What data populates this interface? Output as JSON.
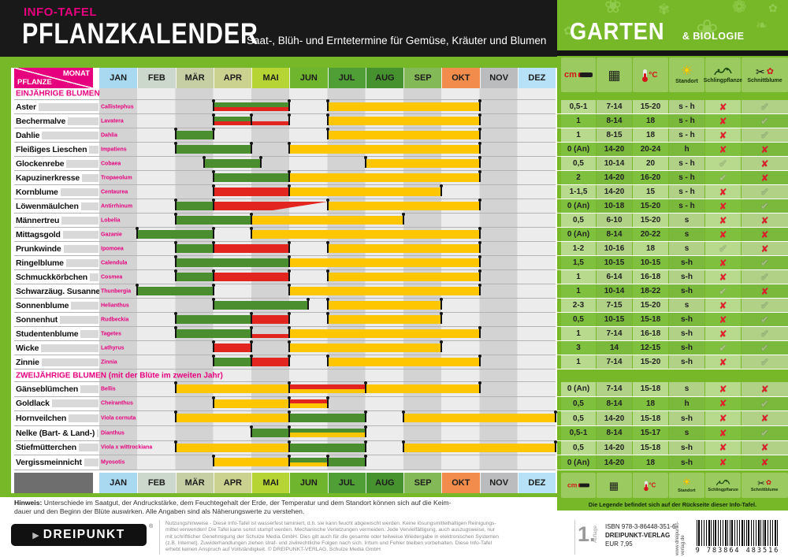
{
  "header": {
    "kicker": "INFO-TAFEL",
    "title": "PFLANZKALENDER",
    "subtitle": "Saat-, Blüh- und Erntetermine für Gemüse, Kräuter und Blumen"
  },
  "brand": {
    "title": "GARTEN",
    "subtitle": "& BIOLOGIE"
  },
  "corner": {
    "top": "MONAT",
    "bottom": "PFLANZE"
  },
  "months": [
    "JAN",
    "FEB",
    "MÄR",
    "APR",
    "MAI",
    "JUN",
    "JUL",
    "AUG",
    "SEP",
    "OKT",
    "NOV",
    "DEZ"
  ],
  "month_colors": [
    "#a9d9f1",
    "#ccd8cc",
    "#c6cfa4",
    "#cbd18e",
    "#b6d433",
    "#6fb52d",
    "#4f9e36",
    "#45922e",
    "#84b957",
    "#f18c4c",
    "#bbbcbd",
    "#b7e1f6"
  ],
  "legend_columns": [
    {
      "id": "depth",
      "label": "",
      "unit": "cm"
    },
    {
      "id": "calendar",
      "label": "",
      "glyph": "▦"
    },
    {
      "id": "thermo",
      "label": "",
      "unit": "°C"
    },
    {
      "id": "sun",
      "label": "Standort",
      "glyph": "☀"
    },
    {
      "id": "vine",
      "label": "Schlingpflanze"
    },
    {
      "id": "shears",
      "label": "Schnittblume",
      "glyph": "✂",
      "flower": "✿"
    }
  ],
  "marks": {
    "yes": "✔",
    "no": "✘"
  },
  "legend_note": "Die Legende befindet sich auf der Rückseite dieser Info-Tafel.",
  "sections": [
    {
      "title": "EINJÄHRIGE BLUMEN",
      "plants": [
        {
          "name": "Aster",
          "latin": "Callistephus",
          "bars": [
            {
              "c": "green",
              "s": 3,
              "e": 5,
              "v": "top"
            },
            {
              "c": "red",
              "s": 3,
              "e": 5,
              "v": "bottom"
            },
            {
              "c": "yellow",
              "s": 6,
              "e": 10,
              "v": "full"
            }
          ],
          "depth": "0,5-1",
          "days": "7-14",
          "temp": "15-20",
          "site": "s - h",
          "climber": "no",
          "cutflower": "yes"
        },
        {
          "name": "Bechermalve",
          "latin": "Lavatera",
          "bars": [
            {
              "c": "green",
              "s": 3,
              "e": 4,
              "v": "top"
            },
            {
              "c": "red",
              "s": 3,
              "e": 5,
              "v": "bottom"
            },
            {
              "c": "yellow",
              "s": 6,
              "e": 10,
              "v": "full"
            }
          ],
          "depth": "1",
          "days": "8-14",
          "temp": "18",
          "site": "s - h",
          "climber": "no",
          "cutflower": "yes"
        },
        {
          "name": "Dahlie",
          "latin": "Dahlia",
          "bars": [
            {
              "c": "green",
              "s": 2,
              "e": 3,
              "v": "full"
            },
            {
              "c": "yellow",
              "s": 6,
              "e": 10,
              "v": "full"
            }
          ],
          "depth": "1",
          "days": "8-15",
          "temp": "18",
          "site": "s - h",
          "climber": "no",
          "cutflower": "yes"
        },
        {
          "name": "Fleißiges Lieschen",
          "latin": "Impatiens",
          "bars": [
            {
              "c": "green",
              "s": 2,
              "e": 4,
              "v": "full"
            },
            {
              "c": "yellow",
              "s": 5,
              "e": 10,
              "v": "full"
            }
          ],
          "depth": "0 (An)",
          "days": "14-20",
          "temp": "20-24",
          "site": "h",
          "climber": "no",
          "cutflower": "no"
        },
        {
          "name": "Glockenrebe",
          "latin": "Cobaea",
          "bars": [
            {
              "c": "green",
              "s": 2.75,
              "e": 4.25,
              "v": "full"
            },
            {
              "c": "yellow",
              "s": 7,
              "e": 10,
              "v": "full"
            }
          ],
          "depth": "0,5",
          "days": "10-14",
          "temp": "20",
          "site": "s - h",
          "climber": "yes",
          "cutflower": "no"
        },
        {
          "name": "Kapuzinerkresse",
          "latin": "Tropaeolum",
          "bars": [
            {
              "c": "green",
              "s": 3,
              "e": 5,
              "v": "full"
            },
            {
              "c": "yellow",
              "s": 5,
              "e": 10,
              "v": "full"
            }
          ],
          "depth": "2",
          "days": "14-20",
          "temp": "16-20",
          "site": "s - h",
          "climber": "yes",
          "cutflower": "no"
        },
        {
          "name": "Kornblume",
          "latin": "Centaurea",
          "bars": [
            {
              "c": "red",
              "s": 3,
              "e": 5,
              "v": "full"
            },
            {
              "c": "yellow",
              "s": 5,
              "e": 9,
              "v": "full"
            }
          ],
          "depth": "1-1,5",
          "days": "14-20",
          "temp": "15",
          "site": "s - h",
          "climber": "no",
          "cutflower": "yes"
        },
        {
          "name": "Löwenmäulchen",
          "latin": "Antirrhinum",
          "bars": [
            {
              "c": "green",
              "s": 2,
              "e": 3,
              "v": "full"
            },
            {
              "c": "red",
              "s": 3,
              "e": 6,
              "v": "taper"
            },
            {
              "c": "yellow",
              "s": 6,
              "e": 10,
              "v": "full"
            }
          ],
          "depth": "0 (An)",
          "days": "10-18",
          "temp": "15-20",
          "site": "s - h",
          "climber": "no",
          "cutflower": "yes"
        },
        {
          "name": "Männertreu",
          "latin": "Lobelia",
          "bars": [
            {
              "c": "green",
              "s": 2,
              "e": 4,
              "v": "full"
            },
            {
              "c": "yellow",
              "s": 4,
              "e": 8,
              "v": "full"
            }
          ],
          "depth": "0,5",
          "days": "6-10",
          "temp": "15-20",
          "site": "s",
          "climber": "no",
          "cutflower": "no"
        },
        {
          "name": "Mittagsgold",
          "latin": "Gazanie",
          "bars": [
            {
              "c": "green",
              "s": 1,
              "e": 3,
              "v": "full"
            },
            {
              "c": "yellow",
              "s": 4,
              "e": 10,
              "v": "full"
            }
          ],
          "depth": "0 (An)",
          "days": "8-14",
          "temp": "20-22",
          "site": "s",
          "climber": "no",
          "cutflower": "no"
        },
        {
          "name": "Prunkwinde",
          "latin": "Ipomoea",
          "bars": [
            {
              "c": "green",
              "s": 2,
              "e": 3,
              "v": "full"
            },
            {
              "c": "red",
              "s": 3,
              "e": 5,
              "v": "full"
            },
            {
              "c": "yellow",
              "s": 6,
              "e": 10,
              "v": "full"
            }
          ],
          "depth": "1-2",
          "days": "10-16",
          "temp": "18",
          "site": "s",
          "climber": "yes",
          "cutflower": "no"
        },
        {
          "name": "Ringelblume",
          "latin": "Calendula",
          "bars": [
            {
              "c": "green",
              "s": 2,
              "e": 5,
              "v": "full"
            },
            {
              "c": "yellow",
              "s": 5,
              "e": 10,
              "v": "full"
            }
          ],
          "depth": "1,5",
          "days": "10-15",
          "temp": "10-15",
          "site": "s-h",
          "climber": "no",
          "cutflower": "yes"
        },
        {
          "name": "Schmuckkörbchen",
          "latin": "Cosmea",
          "bars": [
            {
              "c": "green",
              "s": 2,
              "e": 3,
              "v": "full"
            },
            {
              "c": "red",
              "s": 3,
              "e": 5,
              "v": "full"
            },
            {
              "c": "yellow",
              "s": 6,
              "e": 10,
              "v": "full"
            }
          ],
          "depth": "1",
          "days": "6-14",
          "temp": "16-18",
          "site": "s-h",
          "climber": "no",
          "cutflower": "yes"
        },
        {
          "name": "Schwarzäug. Susanne",
          "latin": "Thunbergia",
          "bars": [
            {
              "c": "green",
              "s": 1,
              "e": 3,
              "v": "full"
            },
            {
              "c": "yellow",
              "s": 5,
              "e": 10,
              "v": "full"
            }
          ],
          "depth": "1",
          "days": "10-14",
          "temp": "18-22",
          "site": "s-h",
          "climber": "yes",
          "cutflower": "no"
        },
        {
          "name": "Sonnenblume",
          "latin": "Helianthus",
          "bars": [
            {
              "c": "green",
              "s": 3,
              "e": 5.5,
              "v": "full"
            },
            {
              "c": "yellow",
              "s": 6,
              "e": 9,
              "v": "full"
            }
          ],
          "depth": "2-3",
          "days": "7-15",
          "temp": "15-20",
          "site": "s",
          "climber": "no",
          "cutflower": "yes"
        },
        {
          "name": "Sonnenhut",
          "latin": "Rudbeckia",
          "bars": [
            {
              "c": "green",
              "s": 2,
              "e": 4,
              "v": "full"
            },
            {
              "c": "red",
              "s": 4,
              "e": 5,
              "v": "full"
            },
            {
              "c": "yellow",
              "s": 6,
              "e": 9,
              "v": "full"
            }
          ],
          "depth": "0,5",
          "days": "10-15",
          "temp": "15-18",
          "site": "s-h",
          "climber": "no",
          "cutflower": "yes"
        },
        {
          "name": "Studentenblume",
          "latin": "Tagetes",
          "bars": [
            {
              "c": "green",
              "s": 2,
              "e": 4,
              "v": "full"
            },
            {
              "c": "red",
              "s": 4,
              "e": 5,
              "v": "bottom"
            },
            {
              "c": "yellow",
              "s": 5,
              "e": 10,
              "v": "full"
            }
          ],
          "depth": "1",
          "days": "7-14",
          "temp": "16-18",
          "site": "s-h",
          "climber": "no",
          "cutflower": "yes"
        },
        {
          "name": "Wicke",
          "latin": "Lathyrus",
          "bars": [
            {
              "c": "red",
              "s": 3,
              "e": 4,
              "v": "full"
            },
            {
              "c": "yellow",
              "s": 5,
              "e": 9,
              "v": "full"
            }
          ],
          "depth": "3",
          "days": "14",
          "temp": "12-15",
          "site": "s-h",
          "climber": "yes",
          "cutflower": "yes"
        },
        {
          "name": "Zinnie",
          "latin": "Zinnia",
          "bars": [
            {
              "c": "green",
              "s": 3,
              "e": 4,
              "v": "full"
            },
            {
              "c": "red",
              "s": 4,
              "e": 5,
              "v": "full"
            },
            {
              "c": "yellow",
              "s": 6,
              "e": 10,
              "v": "full"
            }
          ],
          "depth": "1",
          "days": "7-14",
          "temp": "15-20",
          "site": "s-h",
          "climber": "no",
          "cutflower": "yes"
        }
      ]
    },
    {
      "title": "ZWEIJÄHRIGE BLUMEN (mit der Blüte im zweiten Jahr)",
      "plants": [
        {
          "name": "Gänseblümchen",
          "latin": "Bellis",
          "bars": [
            {
              "c": "yellow",
              "s": 2,
              "e": 10,
              "v": "full"
            },
            {
              "c": "red",
              "s": 5,
              "e": 7,
              "v": "top"
            }
          ],
          "depth": "0 (An)",
          "days": "7-14",
          "temp": "15-18",
          "site": "s",
          "climber": "no",
          "cutflower": "no"
        },
        {
          "name": "Goldlack",
          "latin": "Cheiranthus",
          "bars": [
            {
              "c": "yellow",
              "s": 3,
              "e": 6,
              "v": "full"
            },
            {
              "c": "red",
              "s": 5,
              "e": 6,
              "v": "top"
            }
          ],
          "depth": "0,5",
          "days": "8-14",
          "temp": "18",
          "site": "h",
          "climber": "no",
          "cutflower": "yes"
        },
        {
          "name": "Hornveilchen",
          "latin": "Viola cornuta",
          "bars": [
            {
              "c": "yellow",
              "s": 2,
              "e": 5,
              "v": "full"
            },
            {
              "c": "green",
              "s": 5,
              "e": 7,
              "v": "full"
            },
            {
              "c": "yellow",
              "s": 8,
              "e": 12,
              "v": "full"
            }
          ],
          "depth": "0,5",
          "days": "14-20",
          "temp": "15-18",
          "site": "s-h",
          "climber": "no",
          "cutflower": "no"
        },
        {
          "name": "Nelke (Bart- & Land-)",
          "latin": "Dianthus",
          "bars": [
            {
              "c": "green",
              "s": 4,
              "e": 7,
              "v": "full"
            },
            {
              "c": "yellow",
              "s": 5,
              "e": 7,
              "v": "bottom"
            }
          ],
          "depth": "0,5-1",
          "days": "8-14",
          "temp": "15-17",
          "site": "s",
          "climber": "no",
          "cutflower": "yes"
        },
        {
          "name": "Stiefmütterchen",
          "latin": "Viola x wittrockiana",
          "bars": [
            {
              "c": "yellow",
              "s": 2,
              "e": 5,
              "v": "full"
            },
            {
              "c": "green",
              "s": 5,
              "e": 7,
              "v": "full"
            },
            {
              "c": "yellow",
              "s": 8,
              "e": 12,
              "v": "full"
            }
          ],
          "depth": "0,5",
          "days": "14-20",
          "temp": "15-18",
          "site": "s-h",
          "climber": "no",
          "cutflower": "no"
        },
        {
          "name": "Vergissmeinnicht",
          "latin": "Myosotis",
          "bars": [
            {
              "c": "yellow",
              "s": 3,
              "e": 6,
              "v": "full"
            },
            {
              "c": "green",
              "s": 5,
              "e": 7,
              "v": "full"
            },
            {
              "c": "yellow",
              "s": 5,
              "e": 6,
              "v": "bottom"
            }
          ],
          "depth": "0 (An)",
          "days": "14-20",
          "temp": "18",
          "site": "s-h",
          "climber": "no",
          "cutflower": "no"
        }
      ]
    }
  ],
  "hinweis": {
    "label": "Hinweis:",
    "text": "Unterschiede im Saatgut, der Andruckstärke, dem Feuchtegehalt der Erde, der Temperatur und dem Standort können sich auf die Keim-\ndauer und den Beginn der Blüte auswirken. Alle Angaben sind als Näherungswerte zu verstehen."
  },
  "footer": {
    "logo": "DREIPUNKT",
    "logo_reg": "®",
    "usage_text": "Nutzungshinweise - Diese Info-Tafel ist wasserfest laminiert, d.h. sie kann feucht abgewischt werden. Keine lösungsmittelhaltigen Reinigungs-\nmittel verwenden! Die Tafel kann sonst stumpf werden. Mechanische Verletzungen vermeiden. Jede Vervielfältigung, auch auszugsweise, nur\nmit schriftlicher Genehmigung der Schulze Media GmbH. Dies gilt auch für die gesamte oder teilweise Wiedergabe in elektronischen Systemen\n(z.B. Internet). Zuwiderhandlungen ziehen straf- und zivilrechtliche Folgen nach sich. Irrtum und Fehler bleiben vorbehalten. Diese Info-Tafel\nerhebt keinen Anspruch auf Vollständigkeit. © DREIPUNKT-VERLAG, Schulze Media GmbH",
    "edition_number": "1.",
    "edition_label": "Auflage",
    "isbn_line": "ISBN  978-3-86448-351-6",
    "publisher": "DREIPUNKT-VERLAG",
    "price": "EUR 7,95",
    "website": "www.dreipunkt-verlag.de",
    "barcode_digits": "9 783864 483516"
  },
  "colors": {
    "pink": "#e6007e",
    "panel_green": "#77b829",
    "row_light": "#b7da8c",
    "row_dark": "#7fc13e",
    "stripe_gray": "#d3d3d3",
    "stripe_light": "#ececec",
    "bar_green": "#4b8e2f",
    "bar_red": "#e3251f",
    "bar_yellow": "#fdc600",
    "check_green": "#a9cb7e",
    "cross_red": "#e51e25"
  }
}
